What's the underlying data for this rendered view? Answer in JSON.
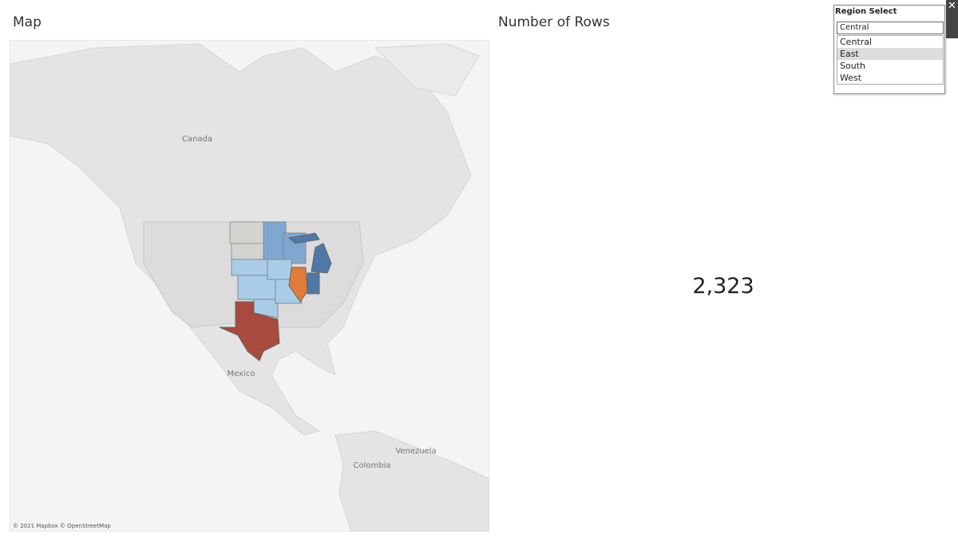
{
  "map_panel": {
    "title": "Map",
    "labels": [
      "Canada",
      "Mexico",
      "Venezuela",
      "Colombia"
    ],
    "attribution": "© 2021 Mapbox © OpenStreetMap"
  },
  "kpi_panel": {
    "title": "Number of Rows",
    "value": "2,323"
  },
  "region_filter": {
    "title": "Region Select",
    "selected": "Central",
    "options": [
      "Central",
      "East",
      "South",
      "West"
    ],
    "hovered": 1
  }
}
